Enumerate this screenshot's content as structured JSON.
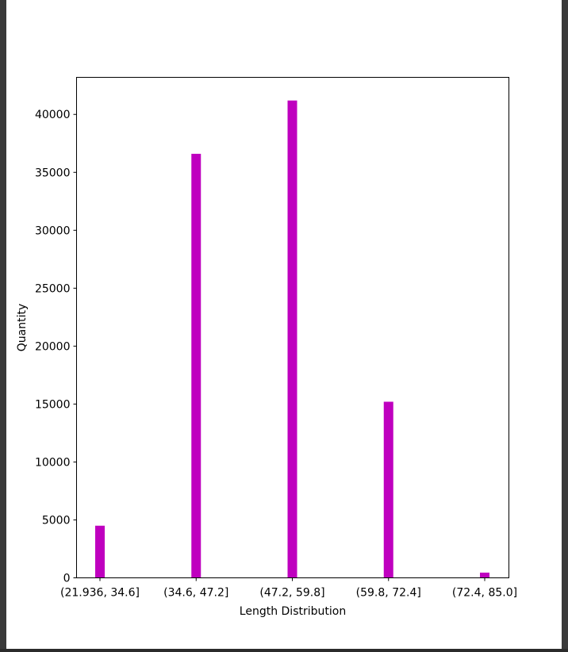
{
  "chart_data": {
    "type": "bar",
    "title": "",
    "xlabel": "Length Distribution",
    "ylabel": "Quantity",
    "categories": [
      "(21.936, 34.6]",
      "(34.6, 47.2]",
      "(47.2, 59.8]",
      "(59.8, 72.4]",
      "(72.4, 85.0]"
    ],
    "values": [
      4500,
      36600,
      41200,
      15200,
      450
    ],
    "ylim": [
      0,
      43200
    ],
    "yticks": [
      0,
      5000,
      10000,
      15000,
      20000,
      25000,
      30000,
      35000,
      40000
    ],
    "ytick_labels": [
      "0",
      "5000",
      "10000",
      "15000",
      "20000",
      "25000",
      "30000",
      "35000",
      "40000"
    ],
    "grid": false,
    "bar_color": "#bf00bf"
  }
}
